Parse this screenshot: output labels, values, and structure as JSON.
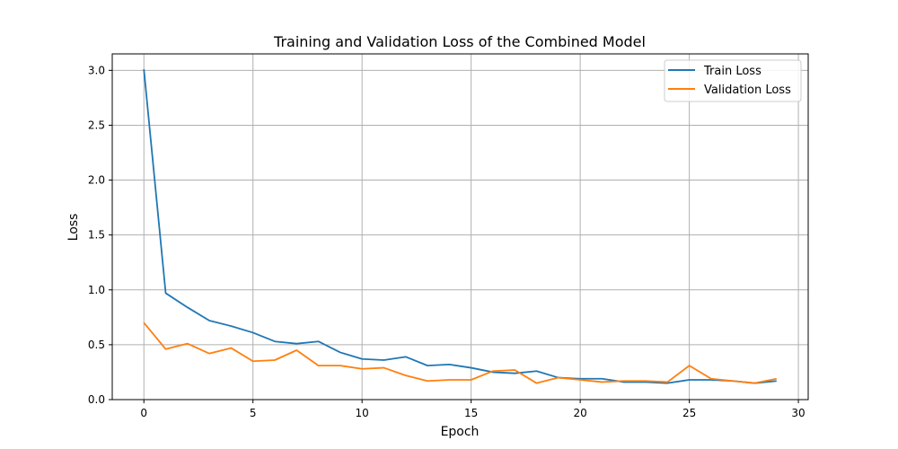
{
  "chart_data": {
    "type": "line",
    "title": "Training and Validation Loss of the Combined Model",
    "xlabel": "Epoch",
    "ylabel": "Loss",
    "xlim": [
      -1.45,
      30.45
    ],
    "ylim": [
      0,
      3.15
    ],
    "xticks": [
      0,
      5,
      10,
      15,
      20,
      25,
      30
    ],
    "xtick_labels": [
      "0",
      "5",
      "10",
      "15",
      "20",
      "25",
      "30"
    ],
    "yticks": [
      0.0,
      0.5,
      1.0,
      1.5,
      2.0,
      2.5,
      3.0
    ],
    "ytick_labels": [
      "0.0",
      "0.5",
      "1.0",
      "1.5",
      "2.0",
      "2.5",
      "3.0"
    ],
    "grid": true,
    "legend_position": "top-right",
    "x": [
      0,
      1,
      2,
      3,
      4,
      5,
      6,
      7,
      8,
      9,
      10,
      11,
      12,
      13,
      14,
      15,
      16,
      17,
      18,
      19,
      20,
      21,
      22,
      23,
      24,
      25,
      26,
      27,
      28,
      29
    ],
    "series": [
      {
        "name": "Train Loss",
        "color": "#1f77b4",
        "values": [
          3.01,
          0.97,
          0.84,
          0.72,
          0.67,
          0.61,
          0.53,
          0.51,
          0.53,
          0.43,
          0.37,
          0.36,
          0.39,
          0.31,
          0.32,
          0.29,
          0.25,
          0.24,
          0.26,
          0.2,
          0.19,
          0.19,
          0.16,
          0.16,
          0.15,
          0.18,
          0.18,
          0.17,
          0.15,
          0.17
        ]
      },
      {
        "name": "Validation Loss",
        "color": "#ff7f0e",
        "values": [
          0.7,
          0.46,
          0.51,
          0.42,
          0.47,
          0.35,
          0.36,
          0.45,
          0.31,
          0.31,
          0.28,
          0.29,
          0.22,
          0.17,
          0.18,
          0.18,
          0.26,
          0.27,
          0.15,
          0.2,
          0.18,
          0.16,
          0.17,
          0.17,
          0.16,
          0.31,
          0.19,
          0.17,
          0.15,
          0.19
        ]
      }
    ]
  }
}
